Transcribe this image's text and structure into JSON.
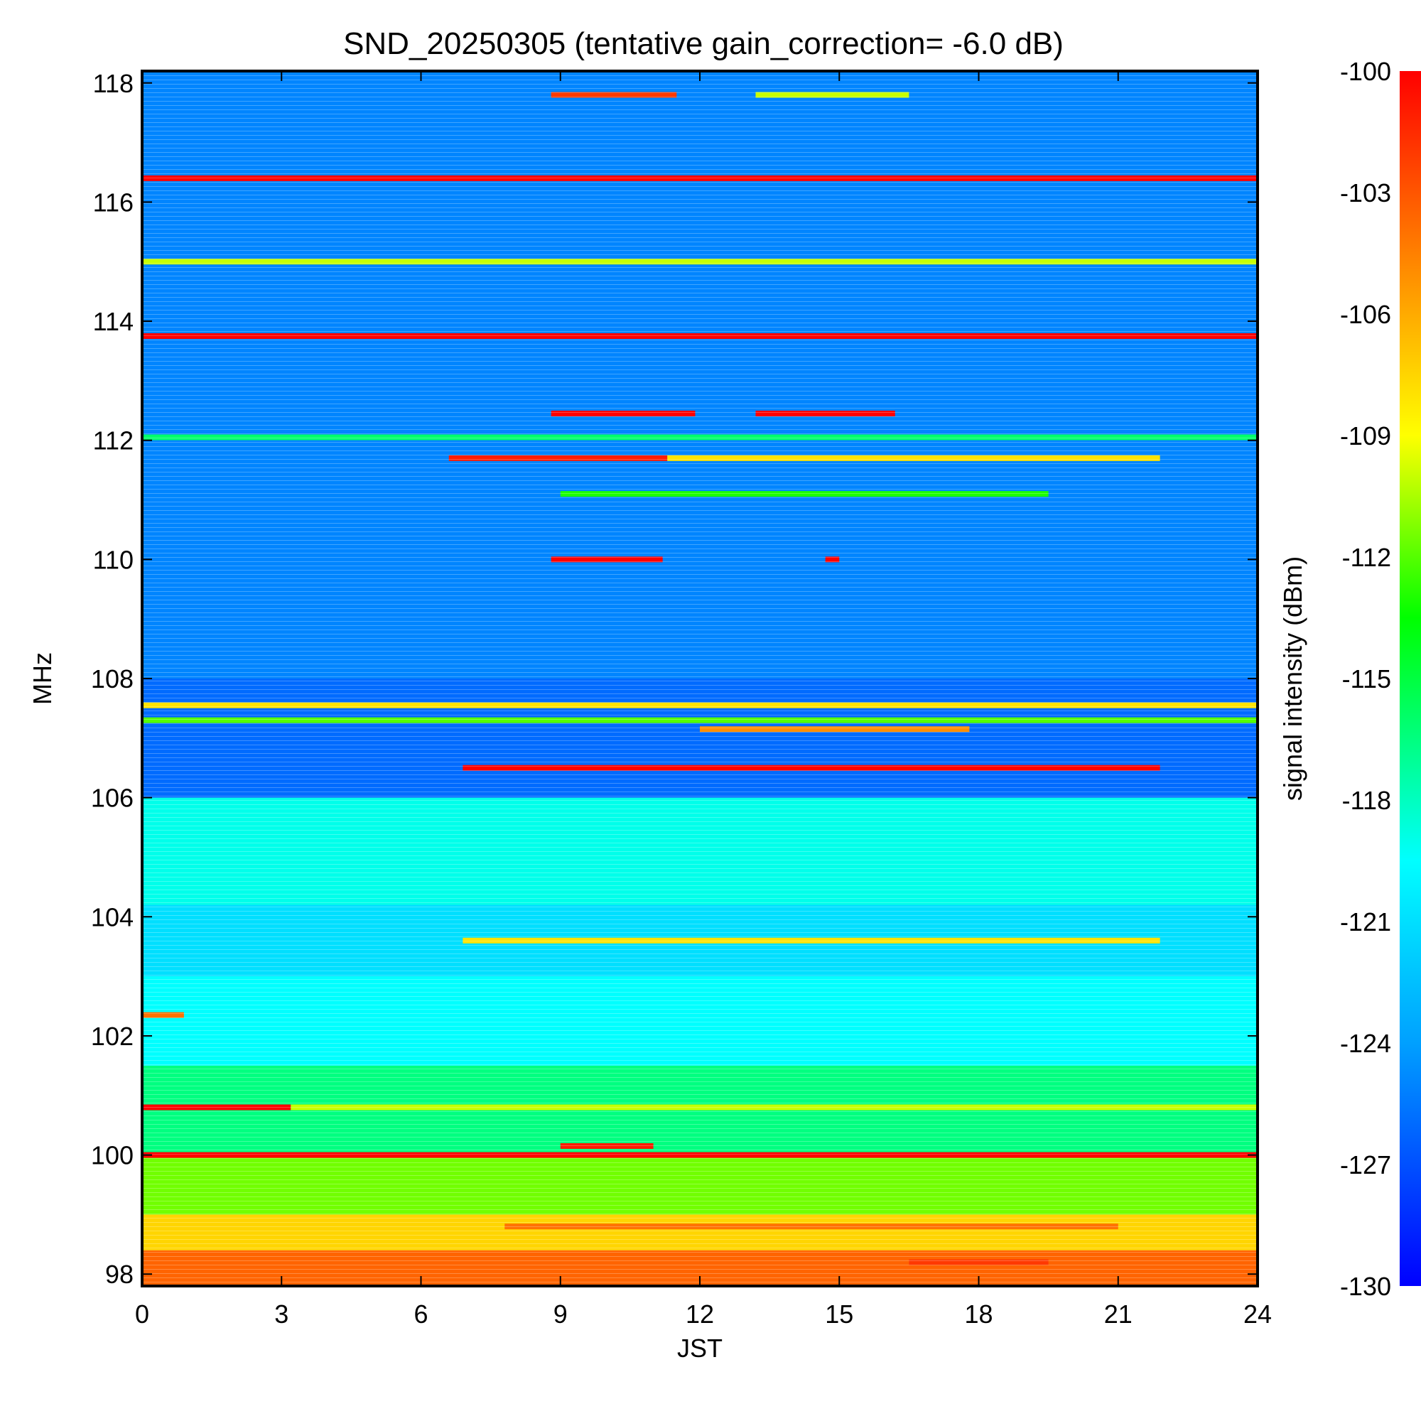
{
  "chart_data": {
    "type": "heatmap",
    "title": "SND_20250305 (tentative gain_correction= -6.0 dB)",
    "xlabel": "JST",
    "ylabel": "MHz",
    "colorbar_label": "signal intensity (dBm)",
    "x_range": [
      0,
      24
    ],
    "y_range": [
      97.8,
      118.2
    ],
    "x_ticks": [
      0,
      3,
      6,
      9,
      12,
      15,
      18,
      21,
      24
    ],
    "x_tick_labels": [
      "0",
      "3",
      "6",
      "9",
      "12",
      "15",
      "18",
      "21",
      "24"
    ],
    "y_ticks": [
      98,
      100,
      102,
      104,
      106,
      108,
      110,
      112,
      114,
      116,
      118
    ],
    "y_tick_labels": [
      "98",
      "100",
      "102",
      "104",
      "106",
      "108",
      "110",
      "112",
      "114",
      "116",
      "118"
    ],
    "color_range": [
      -130,
      -100
    ],
    "colorbar_ticks": [
      -100,
      -103,
      -106,
      -109,
      -112,
      -115,
      -118,
      -121,
      -124,
      -127,
      -130
    ],
    "colorbar_tick_labels": [
      "-100",
      "-103",
      "-106",
      "-109",
      "-112",
      "-115",
      "-118",
      "-121",
      "-124",
      "-127",
      "-130"
    ],
    "colormap": "rainbow",
    "background_bands": [
      {
        "from_mhz": 97.8,
        "to_mhz": 98.4,
        "dbm": -103.5
      },
      {
        "from_mhz": 98.4,
        "to_mhz": 99.0,
        "dbm": -107.5
      },
      {
        "from_mhz": 99.0,
        "to_mhz": 100.0,
        "dbm": -111.5
      },
      {
        "from_mhz": 100.0,
        "to_mhz": 101.5,
        "dbm": -116.5
      },
      {
        "from_mhz": 101.5,
        "to_mhz": 103.0,
        "dbm": -119.5
      },
      {
        "from_mhz": 103.0,
        "to_mhz": 104.2,
        "dbm": -121.0
      },
      {
        "from_mhz": 104.2,
        "to_mhz": 106.0,
        "dbm": -119.0
      },
      {
        "from_mhz": 106.0,
        "to_mhz": 108.0,
        "dbm": -126.0
      },
      {
        "from_mhz": 108.0,
        "to_mhz": 118.2,
        "dbm": -125.0
      }
    ],
    "signals": [
      {
        "mhz": 116.4,
        "start": 0,
        "end": 24,
        "dbm": -100
      },
      {
        "mhz": 115.0,
        "start": 0,
        "end": 24,
        "dbm": -110
      },
      {
        "mhz": 113.75,
        "start": 0,
        "end": 24,
        "dbm": -100
      },
      {
        "mhz": 117.8,
        "start": 8.8,
        "end": 11.5,
        "dbm": -102
      },
      {
        "mhz": 117.8,
        "start": 13.2,
        "end": 16.5,
        "dbm": -110
      },
      {
        "mhz": 112.45,
        "start": 8.8,
        "end": 11.9,
        "dbm": -100
      },
      {
        "mhz": 112.45,
        "start": 13.2,
        "end": 16.2,
        "dbm": -100
      },
      {
        "mhz": 112.05,
        "start": 0,
        "end": 24,
        "dbm": -116
      },
      {
        "mhz": 111.7,
        "start": 6.6,
        "end": 11.3,
        "dbm": -101
      },
      {
        "mhz": 111.7,
        "start": 11.3,
        "end": 21.9,
        "dbm": -108
      },
      {
        "mhz": 111.1,
        "start": 9.0,
        "end": 19.5,
        "dbm": -113
      },
      {
        "mhz": 110.0,
        "start": 8.8,
        "end": 11.2,
        "dbm": -100
      },
      {
        "mhz": 110.0,
        "start": 14.7,
        "end": 15.0,
        "dbm": -100
      },
      {
        "mhz": 107.55,
        "start": 0,
        "end": 24,
        "dbm": -108
      },
      {
        "mhz": 107.3,
        "start": 0,
        "end": 24,
        "dbm": -112
      },
      {
        "mhz": 107.15,
        "start": 12,
        "end": 17.8,
        "dbm": -105
      },
      {
        "mhz": 106.5,
        "start": 6.9,
        "end": 21.9,
        "dbm": -100
      },
      {
        "mhz": 103.6,
        "start": 6.9,
        "end": 21.9,
        "dbm": -108
      },
      {
        "mhz": 102.35,
        "start": 0,
        "end": 0.9,
        "dbm": -104
      },
      {
        "mhz": 100.8,
        "start": 0,
        "end": 3.2,
        "dbm": -100
      },
      {
        "mhz": 100.8,
        "start": 3.2,
        "end": 24,
        "dbm": -110
      },
      {
        "mhz": 100.0,
        "start": 0,
        "end": 24,
        "dbm": -100
      },
      {
        "mhz": 100.15,
        "start": 9.0,
        "end": 11.0,
        "dbm": -101
      },
      {
        "mhz": 98.8,
        "start": 7.8,
        "end": 21.0,
        "dbm": -104
      },
      {
        "mhz": 98.2,
        "start": 16.5,
        "end": 19.5,
        "dbm": -102
      }
    ]
  }
}
